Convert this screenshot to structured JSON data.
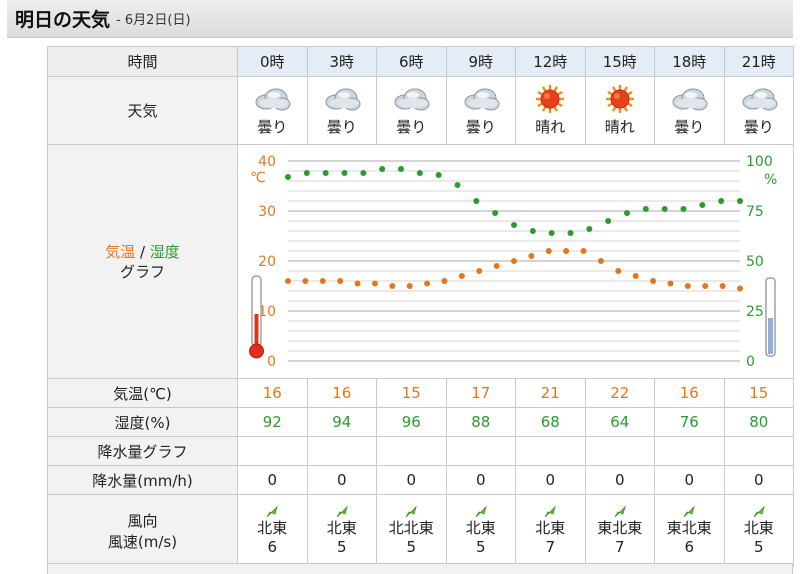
{
  "header": {
    "title": "明日の天気",
    "date": "- 6月2日(日)"
  },
  "labels": {
    "time": "時間",
    "weather": "天気",
    "graph_temp": "気温",
    "graph_sep": " / ",
    "graph_hum": "湿度",
    "graph_word": "グラフ",
    "temp_row": "気温(℃)",
    "hum_row": "湿度(%)",
    "rain_graph": "降水量グラフ",
    "rain_row": "降水量(mm/h)",
    "wind_dir": "風向",
    "wind_speed": "風速(m/s)"
  },
  "times": [
    "0時",
    "3時",
    "6時",
    "9時",
    "12時",
    "15時",
    "18時",
    "21時"
  ],
  "weather": [
    {
      "label": "曇り",
      "icon": "cloud-icon"
    },
    {
      "label": "曇り",
      "icon": "cloud-icon"
    },
    {
      "label": "曇り",
      "icon": "cloud-icon"
    },
    {
      "label": "曇り",
      "icon": "cloud-icon"
    },
    {
      "label": "晴れ",
      "icon": "sun-icon"
    },
    {
      "label": "晴れ",
      "icon": "sun-icon"
    },
    {
      "label": "曇り",
      "icon": "cloud-icon"
    },
    {
      "label": "曇り",
      "icon": "cloud-icon"
    }
  ],
  "temps": [
    "16",
    "16",
    "15",
    "17",
    "21",
    "22",
    "16",
    "15"
  ],
  "humidity": [
    "92",
    "94",
    "96",
    "88",
    "68",
    "64",
    "76",
    "80"
  ],
  "rain": [
    "0",
    "0",
    "0",
    "0",
    "0",
    "0",
    "0",
    "0"
  ],
  "wind": [
    {
      "dir": "北東",
      "speed": "6"
    },
    {
      "dir": "北東",
      "speed": "5"
    },
    {
      "dir": "北北東",
      "speed": "5"
    },
    {
      "dir": "北東",
      "speed": "5"
    },
    {
      "dir": "北東",
      "speed": "7"
    },
    {
      "dir": "東北東",
      "speed": "7"
    },
    {
      "dir": "東北東",
      "speed": "6"
    },
    {
      "dir": "北東",
      "speed": "5"
    }
  ],
  "colors": {
    "temp": "#e7761a",
    "humidity": "#2d9a2d",
    "grid": "#bdbdbd",
    "time_header_bg": "#e4ecf7"
  },
  "chart_data": {
    "type": "line",
    "left_axis": {
      "unit": "℃",
      "ticks": [
        "0",
        "10",
        "20",
        "30",
        "40"
      ],
      "range": [
        0,
        40
      ]
    },
    "right_axis": {
      "unit": "%",
      "ticks": [
        "0",
        "25",
        "50",
        "75",
        "100"
      ],
      "range": [
        0,
        100
      ]
    },
    "series": [
      {
        "axis": "left",
        "color": "#e7761a",
        "values": [
          16,
          16,
          16,
          16,
          15.5,
          15.5,
          15,
          15,
          15.5,
          16,
          17,
          18,
          19,
          20,
          21,
          22,
          22,
          22,
          20,
          18,
          17,
          16,
          15.5,
          15,
          15,
          15,
          14.5
        ]
      },
      {
        "axis": "right",
        "color": "#2d9a2d",
        "values": [
          92,
          94,
          94,
          94,
          94,
          96,
          96,
          94,
          93,
          88,
          80,
          74,
          68,
          65,
          64,
          64,
          66,
          70,
          74,
          76,
          76,
          76,
          78,
          80,
          80
        ]
      }
    ],
    "grid": true
  }
}
